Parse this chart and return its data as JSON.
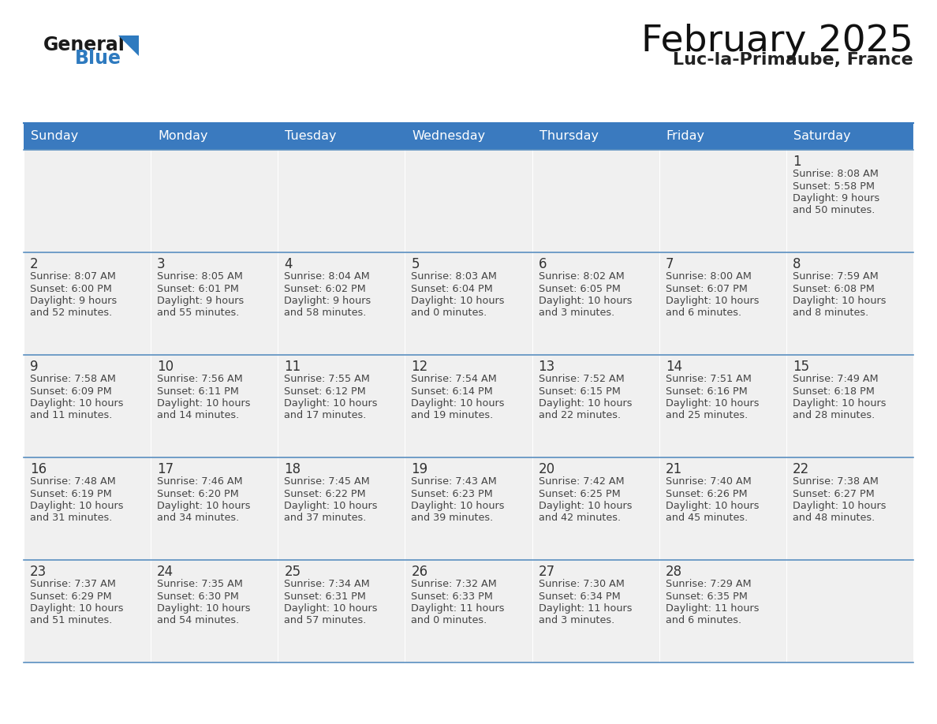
{
  "title": "February 2025",
  "subtitle": "Luc-la-Primaube, France",
  "days_of_week": [
    "Sunday",
    "Monday",
    "Tuesday",
    "Wednesday",
    "Thursday",
    "Friday",
    "Saturday"
  ],
  "header_bg": "#3a7abf",
  "header_text": "#ffffff",
  "cell_bg_light": "#f0f0f0",
  "cell_border_color": "#3a7abf",
  "row_line_color": "#5a8fc0",
  "day_number_color": "#333333",
  "text_color": "#444444",
  "title_color": "#111111",
  "subtitle_color": "#222222",
  "logo_general_color": "#1a1a1a",
  "logo_blue_color": "#2e7abf",
  "calendar_data": [
    [
      null,
      null,
      null,
      null,
      null,
      null,
      {
        "day": 1,
        "sunrise": "8:08 AM",
        "sunset": "5:58 PM",
        "daylight": "9 hours and 50 minutes."
      }
    ],
    [
      {
        "day": 2,
        "sunrise": "8:07 AM",
        "sunset": "6:00 PM",
        "daylight": "9 hours and 52 minutes."
      },
      {
        "day": 3,
        "sunrise": "8:05 AM",
        "sunset": "6:01 PM",
        "daylight": "9 hours and 55 minutes."
      },
      {
        "day": 4,
        "sunrise": "8:04 AM",
        "sunset": "6:02 PM",
        "daylight": "9 hours and 58 minutes."
      },
      {
        "day": 5,
        "sunrise": "8:03 AM",
        "sunset": "6:04 PM",
        "daylight": "10 hours and 0 minutes."
      },
      {
        "day": 6,
        "sunrise": "8:02 AM",
        "sunset": "6:05 PM",
        "daylight": "10 hours and 3 minutes."
      },
      {
        "day": 7,
        "sunrise": "8:00 AM",
        "sunset": "6:07 PM",
        "daylight": "10 hours and 6 minutes."
      },
      {
        "day": 8,
        "sunrise": "7:59 AM",
        "sunset": "6:08 PM",
        "daylight": "10 hours and 8 minutes."
      }
    ],
    [
      {
        "day": 9,
        "sunrise": "7:58 AM",
        "sunset": "6:09 PM",
        "daylight": "10 hours and 11 minutes."
      },
      {
        "day": 10,
        "sunrise": "7:56 AM",
        "sunset": "6:11 PM",
        "daylight": "10 hours and 14 minutes."
      },
      {
        "day": 11,
        "sunrise": "7:55 AM",
        "sunset": "6:12 PM",
        "daylight": "10 hours and 17 minutes."
      },
      {
        "day": 12,
        "sunrise": "7:54 AM",
        "sunset": "6:14 PM",
        "daylight": "10 hours and 19 minutes."
      },
      {
        "day": 13,
        "sunrise": "7:52 AM",
        "sunset": "6:15 PM",
        "daylight": "10 hours and 22 minutes."
      },
      {
        "day": 14,
        "sunrise": "7:51 AM",
        "sunset": "6:16 PM",
        "daylight": "10 hours and 25 minutes."
      },
      {
        "day": 15,
        "sunrise": "7:49 AM",
        "sunset": "6:18 PM",
        "daylight": "10 hours and 28 minutes."
      }
    ],
    [
      {
        "day": 16,
        "sunrise": "7:48 AM",
        "sunset": "6:19 PM",
        "daylight": "10 hours and 31 minutes."
      },
      {
        "day": 17,
        "sunrise": "7:46 AM",
        "sunset": "6:20 PM",
        "daylight": "10 hours and 34 minutes."
      },
      {
        "day": 18,
        "sunrise": "7:45 AM",
        "sunset": "6:22 PM",
        "daylight": "10 hours and 37 minutes."
      },
      {
        "day": 19,
        "sunrise": "7:43 AM",
        "sunset": "6:23 PM",
        "daylight": "10 hours and 39 minutes."
      },
      {
        "day": 20,
        "sunrise": "7:42 AM",
        "sunset": "6:25 PM",
        "daylight": "10 hours and 42 minutes."
      },
      {
        "day": 21,
        "sunrise": "7:40 AM",
        "sunset": "6:26 PM",
        "daylight": "10 hours and 45 minutes."
      },
      {
        "day": 22,
        "sunrise": "7:38 AM",
        "sunset": "6:27 PM",
        "daylight": "10 hours and 48 minutes."
      }
    ],
    [
      {
        "day": 23,
        "sunrise": "7:37 AM",
        "sunset": "6:29 PM",
        "daylight": "10 hours and 51 minutes."
      },
      {
        "day": 24,
        "sunrise": "7:35 AM",
        "sunset": "6:30 PM",
        "daylight": "10 hours and 54 minutes."
      },
      {
        "day": 25,
        "sunrise": "7:34 AM",
        "sunset": "6:31 PM",
        "daylight": "10 hours and 57 minutes."
      },
      {
        "day": 26,
        "sunrise": "7:32 AM",
        "sunset": "6:33 PM",
        "daylight": "11 hours and 0 minutes."
      },
      {
        "day": 27,
        "sunrise": "7:30 AM",
        "sunset": "6:34 PM",
        "daylight": "11 hours and 3 minutes."
      },
      {
        "day": 28,
        "sunrise": "7:29 AM",
        "sunset": "6:35 PM",
        "daylight": "11 hours and 6 minutes."
      },
      null
    ]
  ]
}
